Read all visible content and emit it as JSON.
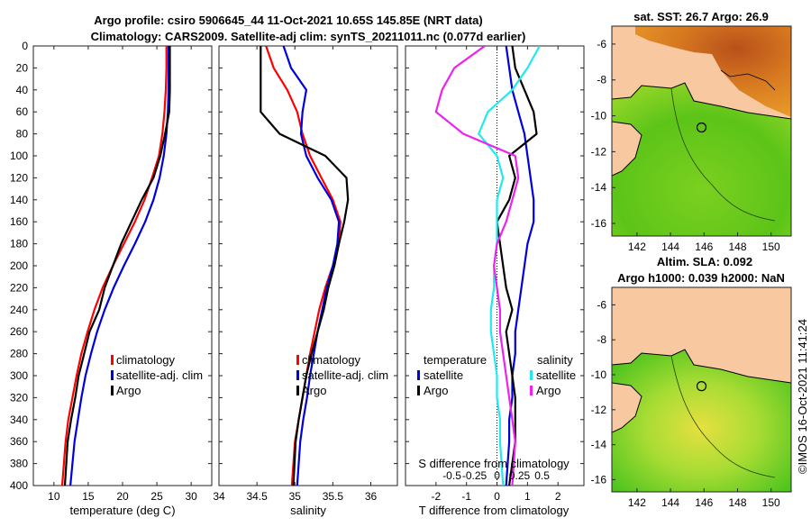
{
  "title": {
    "line1": "Argo profile: csiro 5906645_44 11-Oct-2021 10.65S 145.85E (NRT data)",
    "line2": "Climatology: CARS2009. Satellite-adj clim: synTS_20211011.nc (0.077d earlier)"
  },
  "colors": {
    "climatology": "#ff0000",
    "satellite": "#0000dd",
    "argo": "#000000",
    "cyan": "#22e8f0",
    "magenta": "#ee22ee",
    "land": "#f8c8a0"
  },
  "map_top": {
    "title": "sat. SST: 26.7 Argo: 26.9"
  },
  "map_bottom": {
    "title1": "Altim. SLA: 0.092",
    "title2": "Argo h1000: 0.039 h2000: NaN"
  },
  "copyright": "©IMOS 16-Oct-2021 11:41:24",
  "chart_data": [
    {
      "type": "line",
      "id": "temperature",
      "xlabel": "temperature (deg C)",
      "ylabel": "",
      "xlim": [
        7,
        33
      ],
      "ylim": [
        400,
        0
      ],
      "xticks": [
        "10",
        "15",
        "20",
        "25",
        "30"
      ],
      "xtick_values": [
        10,
        15,
        20,
        25,
        30
      ],
      "yticks": [
        "0",
        "20",
        "40",
        "60",
        "80",
        "100",
        "120",
        "140",
        "160",
        "180",
        "200",
        "220",
        "240",
        "260",
        "280",
        "300",
        "320",
        "340",
        "360",
        "380",
        "400"
      ],
      "ytick_values": [
        0,
        20,
        40,
        60,
        80,
        100,
        120,
        140,
        160,
        180,
        200,
        220,
        240,
        260,
        280,
        300,
        320,
        340,
        360,
        380,
        400
      ],
      "legend": [
        "climatology",
        "satellite-adj. clim",
        "Argo"
      ],
      "series": [
        {
          "name": "climatology",
          "color": "#ff0000",
          "x": [
            26.4,
            26.4,
            26.3,
            26.1,
            25.8,
            25.3,
            24.3,
            23.2,
            21.8,
            20.2,
            18.6,
            17.1,
            15.9,
            14.9,
            14.0,
            13.3,
            12.7,
            12.1,
            11.7,
            11.2
          ],
          "y": [
            0,
            20,
            40,
            60,
            80,
            100,
            120,
            140,
            160,
            180,
            200,
            220,
            240,
            260,
            280,
            300,
            320,
            340,
            360,
            400
          ]
        },
        {
          "name": "satellite-adj. clim",
          "color": "#0000dd",
          "x": [
            26.7,
            26.7,
            26.7,
            26.6,
            26.4,
            26.0,
            25.4,
            24.5,
            23.3,
            21.8,
            20.2,
            18.7,
            17.4,
            16.3,
            15.4,
            14.6,
            14.0,
            13.5,
            13.0,
            12.4
          ],
          "y": [
            0,
            20,
            40,
            60,
            80,
            100,
            120,
            140,
            160,
            180,
            200,
            220,
            240,
            260,
            280,
            300,
            320,
            340,
            360,
            400
          ]
        },
        {
          "name": "Argo",
          "color": "#000000",
          "x": [
            26.9,
            26.9,
            26.9,
            26.8,
            26.2,
            25.5,
            24.5,
            22.8,
            21.3,
            19.8,
            18.6,
            17.4,
            16.6,
            15.2,
            14.4,
            13.6,
            13.1,
            12.5,
            12.0,
            11.6
          ],
          "y": [
            0,
            20,
            40,
            60,
            80,
            100,
            120,
            140,
            160,
            180,
            200,
            220,
            240,
            260,
            280,
            300,
            320,
            340,
            360,
            400
          ]
        }
      ]
    },
    {
      "type": "line",
      "id": "salinity",
      "xlabel": "salinity",
      "ylabel": "",
      "xlim": [
        34,
        36.35
      ],
      "ylim": [
        400,
        0
      ],
      "xticks": [
        "34",
        "34.5",
        "35",
        "35.5",
        "36"
      ],
      "xtick_values": [
        34,
        34.5,
        35,
        35.5,
        36
      ],
      "legend": [
        "climatology",
        "satellite-adj. clim",
        "Argo"
      ],
      "series": [
        {
          "name": "climatology",
          "color": "#ff0000",
          "x": [
            34.62,
            34.72,
            34.9,
            35.03,
            35.1,
            35.2,
            35.35,
            35.5,
            35.6,
            35.58,
            35.5,
            35.4,
            35.32,
            35.26,
            35.2,
            35.15,
            35.1,
            35.05,
            35.0,
            34.96
          ],
          "y": [
            0,
            20,
            40,
            60,
            80,
            100,
            120,
            140,
            160,
            180,
            200,
            220,
            240,
            260,
            280,
            300,
            320,
            340,
            360,
            400
          ]
        },
        {
          "name": "satellite-adj. clim",
          "color": "#0000dd",
          "x": [
            34.85,
            34.95,
            35.15,
            35.1,
            35.08,
            35.15,
            35.3,
            35.48,
            35.58,
            35.56,
            35.5,
            35.42,
            35.36,
            35.3,
            35.25,
            35.2,
            35.16,
            35.11,
            35.07,
            35.03
          ],
          "y": [
            0,
            20,
            40,
            60,
            80,
            100,
            120,
            140,
            160,
            180,
            200,
            220,
            240,
            260,
            280,
            300,
            320,
            340,
            360,
            400
          ]
        },
        {
          "name": "Argo",
          "color": "#000000",
          "x": [
            34.55,
            34.55,
            34.55,
            34.55,
            34.8,
            35.4,
            35.68,
            35.7,
            35.65,
            35.58,
            35.52,
            35.44,
            35.38,
            35.3,
            35.22,
            35.15,
            35.1,
            35.05,
            35.01,
            34.98
          ],
          "y": [
            0,
            20,
            40,
            60,
            80,
            100,
            120,
            140,
            160,
            180,
            200,
            220,
            240,
            260,
            280,
            300,
            320,
            340,
            360,
            400
          ]
        }
      ]
    },
    {
      "type": "line",
      "id": "differences",
      "xlabel": "T difference from climatology",
      "ylabel": "",
      "top_label": "S difference from climatology",
      "xlim": [
        -3,
        2.85
      ],
      "ylim": [
        400,
        0
      ],
      "xticks": [
        "-2",
        "-1",
        "0",
        "1",
        "2"
      ],
      "xtick_values": [
        -2,
        -1,
        0,
        1,
        2
      ],
      "sticks": [
        "-0.5",
        "-0.25",
        "0",
        "0.25",
        "0.5"
      ],
      "legend_temperature": {
        "title": "temperature",
        "items": [
          "satellite",
          "Argo"
        ]
      },
      "legend_salinity": {
        "title": "salinity",
        "items": [
          "satellite",
          "Argo"
        ]
      },
      "series": [
        {
          "name": "T satellite",
          "color": "#0000dd",
          "x": [
            0.3,
            0.4,
            0.5,
            0.7,
            0.9,
            1.0,
            1.1,
            1.2,
            1.2,
            1.0,
            0.9,
            0.8,
            0.7,
            0.6,
            0.6,
            0.5,
            0.5,
            0.4,
            0.4,
            0.3
          ],
          "y": [
            0,
            20,
            40,
            60,
            80,
            100,
            120,
            140,
            160,
            180,
            200,
            220,
            240,
            260,
            280,
            300,
            320,
            340,
            360,
            400
          ]
        },
        {
          "name": "T Argo",
          "color": "#000000",
          "x": [
            0.5,
            0.6,
            0.9,
            1.2,
            1.3,
            0.4,
            0.6,
            0.4,
            0.0,
            0.1,
            0.2,
            0.3,
            0.5,
            0.3,
            0.4,
            0.5,
            0.6,
            0.6,
            0.6,
            0.4
          ],
          "y": [
            0,
            20,
            40,
            60,
            80,
            100,
            120,
            140,
            160,
            180,
            200,
            220,
            240,
            260,
            280,
            300,
            320,
            340,
            360,
            400
          ]
        },
        {
          "name": "S satellite",
          "color": "#22e8f0",
          "x": [
            1.4,
            1.0,
            0.5,
            -0.3,
            -0.6,
            0.0,
            0.2,
            0.0,
            0.0,
            0.0,
            -0.1,
            -0.1,
            -0.2,
            -0.2,
            -0.1,
            0.0,
            0.0,
            0.1,
            0.1,
            0.2
          ],
          "y": [
            0,
            20,
            40,
            60,
            80,
            100,
            120,
            140,
            160,
            180,
            200,
            220,
            240,
            260,
            280,
            300,
            320,
            340,
            360,
            400
          ]
        },
        {
          "name": "S Argo",
          "color": "#ee22ee",
          "x": [
            -0.4,
            -1.4,
            -1.8,
            -2.0,
            -1.1,
            0.6,
            0.7,
            0.5,
            0.3,
            0.0,
            -0.1,
            0.0,
            0.1,
            0.1,
            0.2,
            0.3,
            0.4,
            0.5,
            0.6,
            0.5
          ],
          "y": [
            0,
            20,
            40,
            60,
            80,
            100,
            120,
            140,
            160,
            180,
            200,
            220,
            240,
            260,
            280,
            300,
            320,
            340,
            360,
            400
          ]
        }
      ]
    },
    {
      "type": "heatmap",
      "id": "map_sst",
      "title": "sat. SST: 26.7 Argo: 26.9",
      "xlim": [
        140.5,
        151.2
      ],
      "ylim": [
        -16.7,
        -5.0
      ],
      "xticks": [
        "142",
        "144",
        "146",
        "148",
        "150"
      ],
      "xtick_values": [
        142,
        144,
        146,
        148,
        150
      ],
      "yticks": [
        "-6",
        "-8",
        "-10",
        "-12",
        "-14",
        "-16"
      ],
      "ytick_values": [
        -6,
        -8,
        -10,
        -12,
        -14,
        -16
      ],
      "marker": {
        "lon": 145.85,
        "lat": -10.65
      }
    },
    {
      "type": "heatmap",
      "id": "map_sla",
      "title": "Altim. SLA: 0.092",
      "xlim": [
        140.5,
        151.2
      ],
      "ylim": [
        -16.7,
        -5.0
      ],
      "xticks": [
        "142",
        "144",
        "146",
        "148",
        "150"
      ],
      "xtick_values": [
        142,
        144,
        146,
        148,
        150
      ],
      "yticks": [
        "-6",
        "-8",
        "-10",
        "-12",
        "-14",
        "-16"
      ],
      "ytick_values": [
        -6,
        -8,
        -10,
        -12,
        -14,
        -16
      ],
      "marker": {
        "lon": 145.85,
        "lat": -10.65
      }
    }
  ]
}
